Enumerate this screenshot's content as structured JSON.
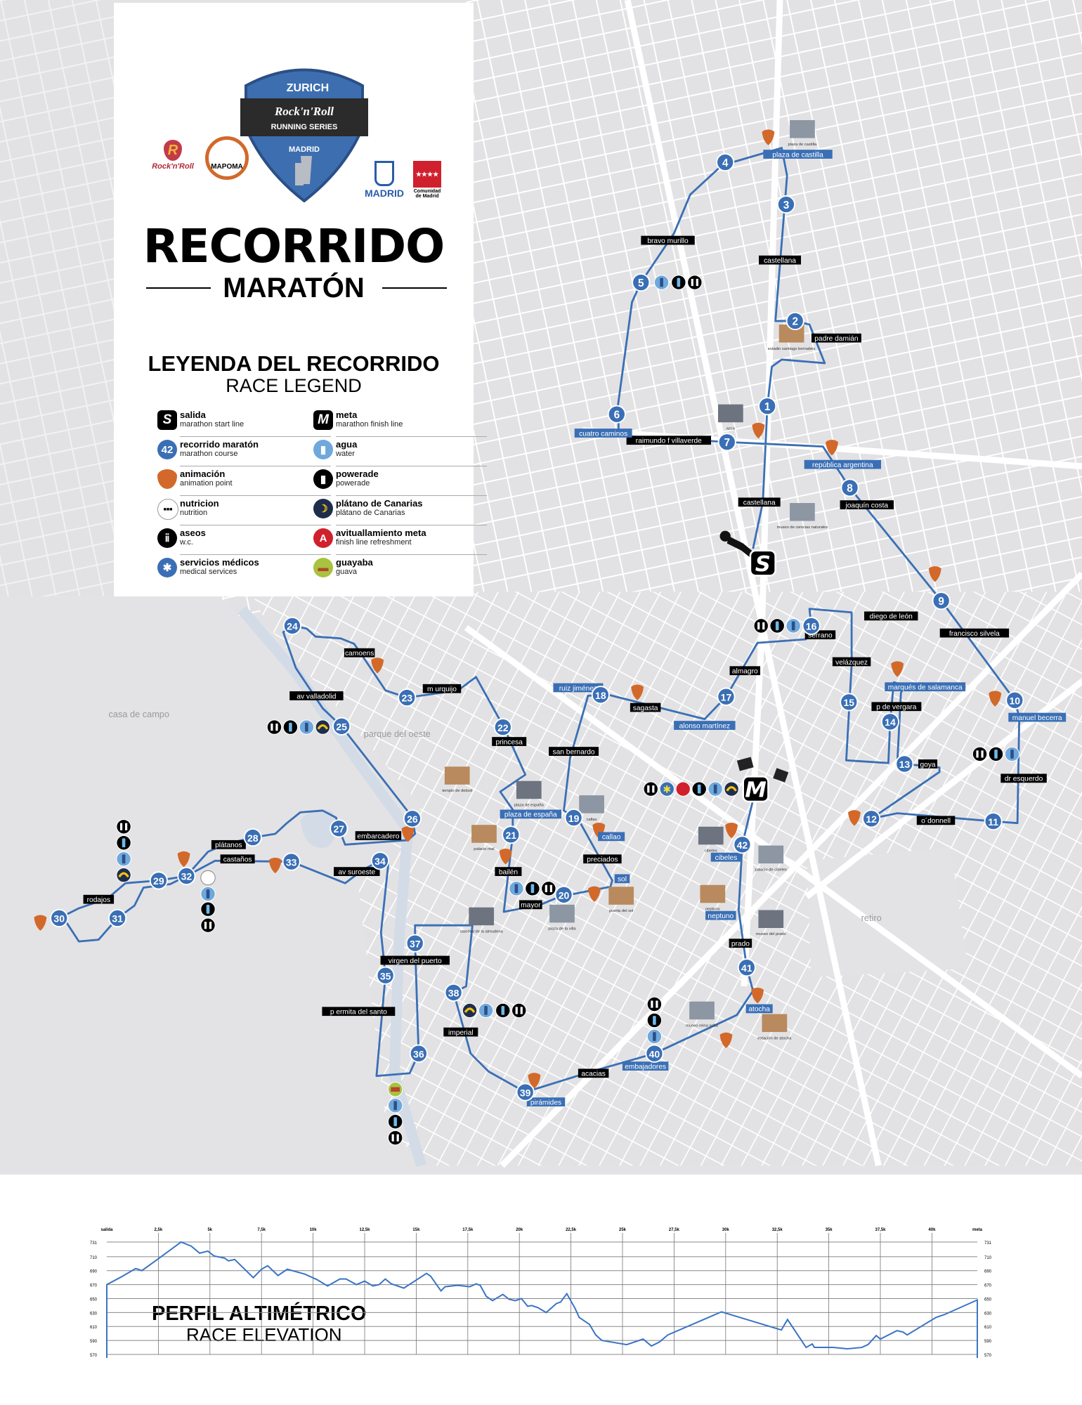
{
  "header": {
    "sponsor": "ZURICH",
    "event_logo": "Rock'n'Roll RUNNING SERIES",
    "event_city": "MADRID",
    "partner_logos": [
      "Rock'n'Roll RUNNING SERIES",
      "MAPOMA",
      "MADRID",
      "Comunidad de Madrid"
    ],
    "title": "RECORRIDO",
    "subtitle": "MARATÓN"
  },
  "legend": {
    "title": "LEYENDA DEL RECORRIDO",
    "subtitle": "RACE LEGEND",
    "items": [
      {
        "icon": "start-s-icon",
        "label": "salida",
        "sub": "marathon start line",
        "color": "#000000"
      },
      {
        "icon": "finish-m-icon",
        "label": "meta",
        "sub": "marathon finish line",
        "color": "#000000"
      },
      {
        "icon": "km-marker-icon",
        "label": "recorrido maratón",
        "sub": "marathon course",
        "color": "#3a6fb5",
        "marker": "42"
      },
      {
        "icon": "water-bottle-icon",
        "label": "agua",
        "sub": "water",
        "color": "#6fa8dc"
      },
      {
        "icon": "guitar-pick-icon",
        "label": "animación",
        "sub": "animation point",
        "color": "#d2692a"
      },
      {
        "icon": "powerade-bottle-icon",
        "label": "powerade",
        "sub": "powerade",
        "color": "#000000"
      },
      {
        "icon": "nutrition-icon",
        "label": "nutricion",
        "sub": "nutrition",
        "color": "#ffffff"
      },
      {
        "icon": "banana-icon",
        "label": "plátano de Canarias",
        "sub": "plátano de Canarias",
        "color": "#1f2d4d"
      },
      {
        "icon": "toilets-icon",
        "label": "aseos",
        "sub": "w.c.",
        "color": "#000000"
      },
      {
        "icon": "finish-refreshment-icon",
        "label": "avituallamiento meta",
        "sub": "finish line refreshment",
        "color": "#d0202e"
      },
      {
        "icon": "medical-icon",
        "label": "servicios médicos",
        "sub": "medical services",
        "color": "#3a6fb5"
      },
      {
        "icon": "guava-icon",
        "label": "guayaba",
        "sub": "guava",
        "color": "#a9c23f"
      }
    ]
  },
  "map": {
    "route_color": "#3a6fb5",
    "animation_color": "#d2692a",
    "start_label": "S",
    "finish_label": "M",
    "km_markers": [
      "1",
      "2",
      "3",
      "4",
      "5",
      "6",
      "7",
      "8",
      "9",
      "10",
      "11",
      "12",
      "13",
      "14",
      "15",
      "16",
      "17",
      "18",
      "19",
      "20",
      "21",
      "22",
      "23",
      "24",
      "25",
      "26",
      "27",
      "28",
      "29",
      "30",
      "31",
      "32",
      "33",
      "34",
      "35",
      "36",
      "37",
      "38",
      "39",
      "40",
      "41",
      "42"
    ],
    "streets": [
      "bravo murillo",
      "castellana",
      "padre damián",
      "raimundo f villaverde",
      "castellana",
      "joaquín costa",
      "diego de león",
      "serrano",
      "francisco silvela",
      "velázquez",
      "almagro",
      "p de vergara",
      "goya",
      "dr esquerdo",
      "o´donnell",
      "camoens",
      "av valladolid",
      "m urquijo",
      "princesa",
      "san bernardo",
      "sagasta",
      "preciados",
      "bailén",
      "mayor",
      "embarcadero",
      "plátanos",
      "castaños",
      "av suroeste",
      "rodajos",
      "virgen del puerto",
      "p ermita del santo",
      "imperial",
      "acacias",
      "prado"
    ],
    "places": [
      "plaza de castilla",
      "república argentina",
      "cuatro caminos",
      "ruiz jiménez",
      "alonso martínez",
      "marqués de salamanca",
      "manuel becerra",
      "plaza de españa",
      "callao",
      "sol",
      "cibeles",
      "neptuno",
      "atocha",
      "embajadores",
      "pirámides"
    ],
    "landmarks": [
      "plaza de castilla",
      "estadio santiago bernabéu",
      "azca",
      "museo de ciencias naturales",
      "templo de debod",
      "plaza de españa",
      "callao",
      "palacio real",
      "catedral de la almudena",
      "plaza de la villa",
      "puerta del sol",
      "cibeles",
      "palacio de cibeles",
      "neptuno",
      "museo del prado",
      "museo reina sofía",
      "estación de atocha"
    ],
    "areas": [
      "casa de campo",
      "parque del oeste",
      "retiro"
    ]
  },
  "elevation": {
    "title": "PERFIL ALTIMÉTRICO",
    "subtitle": "RACE ELEVATION"
  },
  "chart_data": {
    "type": "line",
    "title": "PERFIL ALTIMÉTRICO",
    "subtitle": "RACE ELEVATION",
    "x_tick_labels": [
      "salida",
      "2,5k",
      "5k",
      "7,5k",
      "10k",
      "12,5k",
      "15k",
      "17,5k",
      "20k",
      "22,5k",
      "25k",
      "27,5k",
      "30k",
      "32,5k",
      "35k",
      "37,5k",
      "40k",
      "meta"
    ],
    "y_tick_labels": [
      "731",
      "710",
      "690",
      "670",
      "650",
      "630",
      "610",
      "590",
      "570"
    ],
    "xlim": [
      0,
      42.2
    ],
    "ylim": [
      570,
      731
    ],
    "grid": true,
    "series": [
      {
        "x": [
          0,
          0.7,
          1.4,
          1.7,
          2.5,
          3.6,
          4.1,
          4.5,
          4.9,
          5.2,
          5.7,
          5.9,
          6.2,
          7.1,
          7.5,
          7.8,
          8.3,
          8.75,
          9.6,
          10.2,
          10.7,
          11.3,
          11.6,
          12.1,
          12.5,
          12.9,
          13.2,
          13.5,
          13.8,
          14.4,
          15.5,
          15.7,
          16.2,
          16.4,
          17.0,
          17.6,
          17.9,
          18.1,
          18.4,
          18.7,
          19.2,
          19.5,
          19.8,
          20.1,
          20.4,
          20.6,
          20.9,
          21.3,
          21.8,
          22.0,
          22.3,
          22.7,
          22.9,
          23.4,
          23.7,
          24.0,
          25.2,
          26.0,
          26.4,
          26.8,
          27.2,
          29.8,
          32.7,
          33.0,
          33.9,
          34.2,
          34.3,
          35.2,
          35.9,
          36.6,
          36.9,
          37.3,
          37.5,
          38.3,
          38.6,
          38.8,
          40.2,
          40.6,
          42.2
        ],
        "y": [
          670,
          681,
          693,
          690,
          707,
          731,
          725,
          715,
          718,
          711,
          708,
          704,
          706,
          680,
          692,
          697,
          683,
          692,
          685,
          677,
          668,
          678,
          678,
          670,
          675,
          668,
          670,
          678,
          671,
          665,
          686,
          682,
          661,
          667,
          669,
          667,
          671,
          669,
          653,
          647,
          656,
          649,
          647,
          650,
          639,
          640,
          637,
          630,
          643,
          645,
          657,
          636,
          623,
          613,
          598,
          590,
          584,
          592,
          582,
          588,
          598,
          631,
          605,
          620,
          580,
          585,
          580,
          580,
          578,
          580,
          584,
          597,
          592,
          604,
          602,
          598,
          623,
          627,
          648
        ]
      }
    ]
  }
}
